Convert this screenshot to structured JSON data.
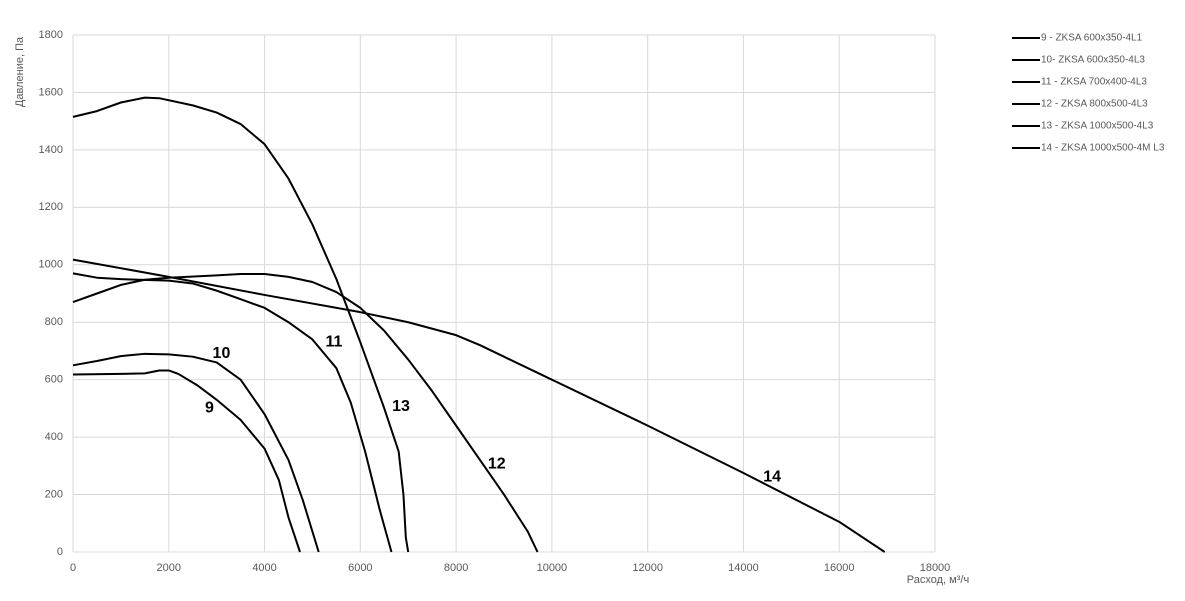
{
  "chart_data": {
    "type": "line",
    "xlabel": "Расход, м³/ч",
    "ylabel": "Давление, Па",
    "xlim": [
      0,
      18000
    ],
    "ylim": [
      0,
      1800
    ],
    "xticks": [
      0,
      2000,
      4000,
      6000,
      8000,
      10000,
      12000,
      14000,
      16000,
      18000
    ],
    "yticks": [
      0,
      200,
      400,
      600,
      800,
      1000,
      1200,
      1400,
      1600,
      1800
    ],
    "grid": true,
    "legend": "right",
    "series": [
      {
        "name": "9 - ZKSA 600x350-4L1",
        "color": "#000000",
        "x": [
          0,
          1000,
          1500,
          1800,
          2000,
          2200,
          2600,
          3000,
          3500,
          4000,
          4300,
          4500,
          4740
        ],
        "values": [
          618,
          620,
          622,
          632,
          632,
          620,
          580,
          530,
          460,
          360,
          250,
          120,
          0
        ]
      },
      {
        "name": "10- ZKSA 600x350-4L3",
        "color": "#000000",
        "x": [
          0,
          500,
          1000,
          1500,
          2000,
          2500,
          3000,
          3500,
          4000,
          4500,
          4800,
          5130
        ],
        "values": [
          650,
          665,
          682,
          690,
          688,
          680,
          660,
          600,
          480,
          320,
          180,
          0
        ]
      },
      {
        "name": "11 - ZKSA 700x400-4L3",
        "color": "#000000",
        "x": [
          0,
          500,
          1000,
          2000,
          2500,
          3000,
          3500,
          4000,
          4500,
          5000,
          5500,
          5800,
          6100,
          6400,
          6650
        ],
        "values": [
          970,
          955,
          950,
          945,
          935,
          910,
          880,
          850,
          800,
          740,
          640,
          520,
          350,
          150,
          0
        ]
      },
      {
        "name": "12 - ZKSA 800x500-4L3",
        "color": "#000000",
        "x": [
          0,
          500,
          1000,
          1500,
          2000,
          3000,
          3500,
          4000,
          4500,
          5000,
          5500,
          6000,
          6500,
          7000,
          7500,
          8000,
          8500,
          9000,
          9500,
          9700
        ],
        "values": [
          870,
          900,
          930,
          948,
          955,
          963,
          968,
          968,
          958,
          940,
          905,
          850,
          770,
          670,
          560,
          440,
          320,
          200,
          70,
          0
        ]
      },
      {
        "name": "13 - ZKSA 1000x500-4L3",
        "color": "#000000",
        "x": [
          0,
          500,
          1000,
          1500,
          1800,
          2500,
          3000,
          3500,
          4000,
          4500,
          5000,
          5500,
          6000,
          6500,
          6800,
          6900,
          6950,
          7000
        ],
        "values": [
          1515,
          1535,
          1565,
          1582,
          1580,
          1555,
          1530,
          1490,
          1420,
          1300,
          1140,
          950,
          730,
          500,
          350,
          200,
          50,
          0
        ]
      },
      {
        "name": "14 - ZKSA 1000x500-4M L3",
        "color": "#000000",
        "x": [
          0,
          2000,
          4000,
          6000,
          7000,
          8000,
          8500,
          9000,
          10000,
          12000,
          14000,
          16000,
          16950
        ],
        "values": [
          1018,
          958,
          895,
          835,
          800,
          755,
          720,
          680,
          600,
          440,
          275,
          105,
          0
        ]
      }
    ],
    "annotations": [
      {
        "text": "9",
        "x": 2850,
        "y": 500
      },
      {
        "text": "10",
        "x": 3100,
        "y": 690
      },
      {
        "text": "11",
        "x": 5450,
        "y": 730
      },
      {
        "text": "13",
        "x": 6850,
        "y": 505
      },
      {
        "text": "12",
        "x": 8850,
        "y": 305
      },
      {
        "text": "14",
        "x": 14600,
        "y": 260
      }
    ]
  }
}
